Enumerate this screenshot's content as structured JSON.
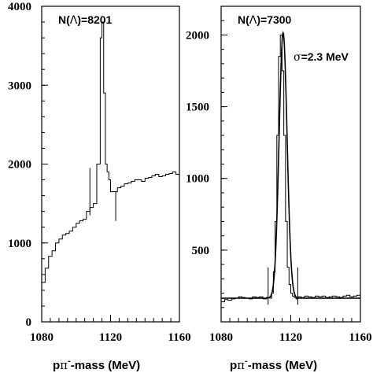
{
  "chart_data": [
    {
      "type": "histogram",
      "annotation_left": "N(",
      "annotation_sym": "Λ",
      "annotation_right": ")=8201",
      "xlabel_p": "p",
      "xlabel_pi": "π",
      "xlabel_sup": "-",
      "xlabel_rest": "-mass (MeV)",
      "xlim": [
        1080,
        1160
      ],
      "ylim": [
        0,
        4000
      ],
      "x_ticks": [
        "1080",
        "1120",
        "1160"
      ],
      "x_tick_values": [
        1080,
        1120,
        1160
      ],
      "y_ticks": [
        "0",
        "1000",
        "2000",
        "3000",
        "4000"
      ],
      "y_tick_values": [
        0,
        1000,
        2000,
        3000,
        4000
      ],
      "bin_edges": [
        1080,
        1082,
        1084,
        1086,
        1088,
        1090,
        1092,
        1094,
        1096,
        1098,
        1100,
        1102,
        1104,
        1106,
        1108,
        1110,
        1112,
        1114,
        1115,
        1116,
        1117,
        1118,
        1119,
        1120,
        1122,
        1124,
        1126,
        1128,
        1130,
        1132,
        1134,
        1136,
        1138,
        1140,
        1142,
        1144,
        1146,
        1148,
        1150,
        1152,
        1154,
        1156,
        1158,
        1160
      ],
      "counts": [
        500,
        680,
        830,
        900,
        1000,
        1050,
        1100,
        1120,
        1150,
        1200,
        1250,
        1280,
        1300,
        1400,
        1450,
        1500,
        2000,
        3600,
        3800,
        2900,
        2000,
        1900,
        1800,
        1650,
        1650,
        1700,
        1720,
        1750,
        1760,
        1780,
        1800,
        1800,
        1780,
        1820,
        1830,
        1850,
        1870,
        1840,
        1850,
        1870,
        1880,
        1900,
        1870
      ],
      "vertical_markers": [
        {
          "x": 1108,
          "y_low": 1350,
          "y_high": 1950
        },
        {
          "x": 1123,
          "y_low": 1280,
          "y_high": 1650
        }
      ]
    },
    {
      "type": "histogram",
      "annotation_left": "N(",
      "annotation_sym": "Λ",
      "annotation_right": ")=7300",
      "sigma_sym": "σ",
      "sigma_text": "=2.3 MeV",
      "xlabel_p": "p",
      "xlabel_pi": "π",
      "xlabel_sup": "-",
      "xlabel_rest": "-mass (MeV)",
      "xlim": [
        1080,
        1160
      ],
      "ylim": [
        0,
        2200
      ],
      "x_ticks": [
        "1080",
        "1120",
        "1160"
      ],
      "x_tick_values": [
        1080,
        1120,
        1160
      ],
      "y_ticks": [
        "500",
        "1000",
        "1500",
        "2000"
      ],
      "y_tick_values": [
        500,
        1000,
        1500,
        2000
      ],
      "bin_edges": [
        1080,
        1082,
        1084,
        1086,
        1088,
        1090,
        1092,
        1094,
        1096,
        1098,
        1100,
        1102,
        1104,
        1106,
        1108,
        1109,
        1110,
        1111,
        1112,
        1113,
        1114,
        1115,
        1116,
        1117,
        1118,
        1119,
        1120,
        1121,
        1122,
        1123,
        1124,
        1126,
        1128,
        1130,
        1132,
        1134,
        1136,
        1138,
        1140,
        1142,
        1144,
        1146,
        1148,
        1150,
        1152,
        1154,
        1156,
        1158,
        1160
      ],
      "counts": [
        140,
        155,
        150,
        160,
        165,
        175,
        170,
        165,
        160,
        175,
        170,
        175,
        160,
        170,
        165,
        200,
        350,
        700,
        1300,
        1850,
        2000,
        1750,
        1300,
        700,
        380,
        260,
        200,
        180,
        170,
        160,
        175,
        170,
        180,
        175,
        170,
        180,
        175,
        180,
        170,
        175,
        180,
        175,
        170,
        180,
        185,
        175,
        180,
        185
      ],
      "fit": {
        "mean": 1115.6,
        "sigma": 2.3,
        "amplitude": 1850,
        "background": 165
      },
      "vertical_markers": [
        {
          "x": 1107,
          "y_low": 120,
          "y_high": 380
        },
        {
          "x": 1124,
          "y_low": 120,
          "y_high": 380
        }
      ]
    }
  ]
}
